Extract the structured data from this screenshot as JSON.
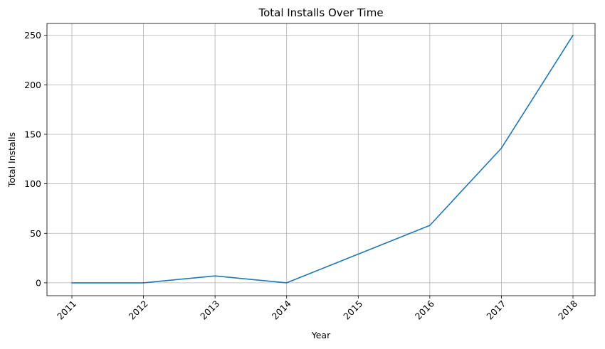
{
  "chart_data": {
    "type": "line",
    "title": "Total Installs Over Time",
    "xlabel": "Year",
    "ylabel": "Total Installs",
    "x": [
      "2011",
      "2012",
      "2013",
      "2014",
      "2015",
      "2016",
      "2017",
      "2018"
    ],
    "series": [
      {
        "values": [
          0,
          0,
          7,
          0,
          29,
          58,
          136,
          250
        ]
      }
    ],
    "yticks": [
      "0",
      "50",
      "100",
      "150",
      "200",
      "250"
    ],
    "ylim": [
      -13,
      262
    ],
    "grid": true,
    "x_tick_rotation": 45,
    "colors": {
      "line": "#1f77b4",
      "grid": "#b0b0b0",
      "axes": "#000000"
    }
  }
}
